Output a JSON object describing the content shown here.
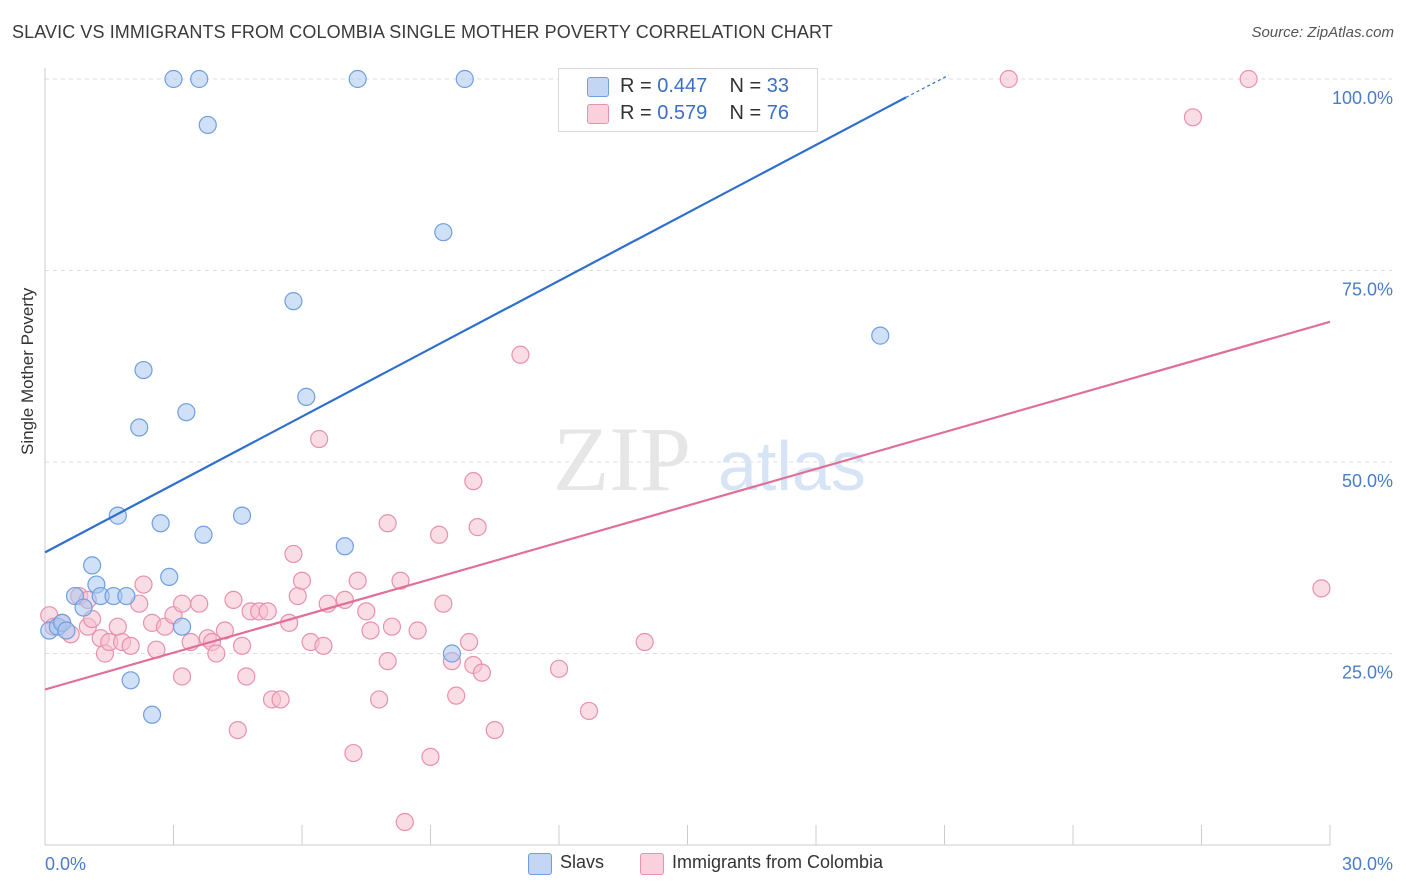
{
  "title": "SLAVIC VS IMMIGRANTS FROM COLOMBIA SINGLE MOTHER POVERTY CORRELATION CHART",
  "source": "Source: ZipAtlas.com",
  "watermark": {
    "zip": "ZIP",
    "atlas": "atlas"
  },
  "legend_top": {
    "r_label": "R =",
    "n_label": "N =",
    "rows": [
      {
        "r": "0.447",
        "n": "33"
      },
      {
        "r": "0.579",
        "n": "76"
      }
    ]
  },
  "legend_bottom": [
    "Slavs",
    "Immigrants from Colombia"
  ],
  "colors": {
    "blue_fill": "#a8c6f0",
    "blue_stroke": "#6f9fe0",
    "blue_line": "#2e6fce",
    "pink_fill": "#f6bfd0",
    "pink_stroke": "#e891ad",
    "pink_line": "#e06f99",
    "tick_text": "#4a7cc9",
    "grid": "#dddddd"
  },
  "chart_data": {
    "type": "scatter",
    "title": "SLAVIC VS IMMIGRANTS FROM COLOMBIA SINGLE MOTHER POVERTY CORRELATION CHART",
    "xlabel": "",
    "ylabel": "Single Mother Poverty",
    "xlim": [
      0,
      30
    ],
    "ylim": [
      0,
      102
    ],
    "x_tick_labels": [
      {
        "value": 0,
        "label": "0.0%"
      },
      {
        "value": 30,
        "label": "30.0%"
      }
    ],
    "y_tick_labels": [
      {
        "value": 25,
        "label": "25.0%"
      },
      {
        "value": 50,
        "label": "50.0%"
      },
      {
        "value": 75,
        "label": "75.0%"
      },
      {
        "value": 100,
        "label": "100.0%"
      }
    ],
    "series": [
      {
        "name": "Slavs",
        "r": 0.447,
        "n": 33,
        "trend": {
          "x": [
            0,
            20.1
          ],
          "y": [
            38.2,
            97.6
          ],
          "dashed_to": {
            "x": 21.1,
            "y": 100.5
          }
        },
        "points": [
          [
            0.1,
            28.0
          ],
          [
            0.3,
            28.5
          ],
          [
            0.4,
            29.0
          ],
          [
            0.5,
            28.0
          ],
          [
            0.7,
            32.5
          ],
          [
            0.9,
            31.0
          ],
          [
            1.1,
            36.5
          ],
          [
            1.2,
            34.0
          ],
          [
            1.3,
            32.5
          ],
          [
            1.6,
            32.5
          ],
          [
            1.9,
            32.5
          ],
          [
            2.0,
            21.5
          ],
          [
            2.2,
            54.5
          ],
          [
            2.3,
            62.0
          ],
          [
            2.5,
            17.0
          ],
          [
            2.7,
            42.0
          ],
          [
            2.9,
            35.0
          ],
          [
            3.2,
            28.5
          ],
          [
            3.3,
            56.5
          ],
          [
            3.7,
            40.5
          ],
          [
            1.7,
            43.0
          ],
          [
            4.6,
            43.0
          ],
          [
            5.8,
            71.0
          ],
          [
            6.1,
            58.5
          ],
          [
            7.0,
            39.0
          ],
          [
            3.0,
            100.0
          ],
          [
            3.6,
            100.0
          ],
          [
            7.3,
            100.0
          ],
          [
            9.8,
            100.0
          ],
          [
            3.8,
            94.0
          ],
          [
            9.3,
            80.0
          ],
          [
            9.5,
            25.0
          ],
          [
            19.5,
            66.5
          ]
        ]
      },
      {
        "name": "Immigrants from Colombia",
        "r": 0.579,
        "n": 76,
        "trend": {
          "x": [
            0,
            30
          ],
          "y": [
            20.3,
            68.3
          ]
        },
        "points": [
          [
            0.1,
            30.0
          ],
          [
            0.2,
            28.5
          ],
          [
            0.4,
            29.0
          ],
          [
            0.6,
            27.5
          ],
          [
            0.8,
            32.5
          ],
          [
            1.0,
            28.5
          ],
          [
            1.1,
            29.5
          ],
          [
            1.3,
            27.0
          ],
          [
            1.4,
            25.0
          ],
          [
            1.5,
            26.5
          ],
          [
            1.7,
            28.5
          ],
          [
            1.8,
            26.5
          ],
          [
            2.0,
            26.0
          ],
          [
            2.2,
            31.5
          ],
          [
            2.3,
            34.0
          ],
          [
            2.5,
            29.0
          ],
          [
            2.6,
            25.5
          ],
          [
            2.8,
            28.5
          ],
          [
            3.0,
            30.0
          ],
          [
            3.2,
            31.5
          ],
          [
            3.2,
            22.0
          ],
          [
            3.4,
            26.5
          ],
          [
            3.6,
            31.5
          ],
          [
            3.8,
            27.0
          ],
          [
            3.9,
            26.5
          ],
          [
            4.0,
            25.0
          ],
          [
            4.2,
            28.0
          ],
          [
            4.4,
            32.0
          ],
          [
            4.5,
            15.0
          ],
          [
            4.6,
            26.0
          ],
          [
            4.7,
            22.0
          ],
          [
            4.8,
            30.5
          ],
          [
            5.0,
            30.5
          ],
          [
            5.2,
            30.5
          ],
          [
            5.3,
            19.0
          ],
          [
            5.5,
            19.0
          ],
          [
            5.7,
            29.0
          ],
          [
            5.8,
            38.0
          ],
          [
            5.9,
            32.5
          ],
          [
            6.0,
            34.5
          ],
          [
            6.2,
            26.5
          ],
          [
            6.5,
            26.0
          ],
          [
            6.4,
            53.0
          ],
          [
            6.6,
            31.5
          ],
          [
            7.0,
            32.0
          ],
          [
            7.2,
            12.0
          ],
          [
            7.3,
            34.5
          ],
          [
            7.5,
            30.5
          ],
          [
            7.6,
            28.0
          ],
          [
            7.8,
            19.0
          ],
          [
            8.0,
            24.0
          ],
          [
            8.1,
            28.5
          ],
          [
            8.3,
            34.5
          ],
          [
            8.0,
            42.0
          ],
          [
            8.4,
            3.0
          ],
          [
            8.7,
            28.0
          ],
          [
            9.0,
            11.5
          ],
          [
            9.2,
            40.5
          ],
          [
            9.3,
            31.5
          ],
          [
            9.5,
            24.0
          ],
          [
            9.6,
            19.5
          ],
          [
            9.9,
            26.5
          ],
          [
            10.0,
            23.5
          ],
          [
            10.2,
            22.5
          ],
          [
            10.0,
            47.5
          ],
          [
            10.1,
            41.5
          ],
          [
            10.5,
            15.0
          ],
          [
            11.1,
            64.0
          ],
          [
            12.0,
            23.0
          ],
          [
            12.7,
            17.5
          ],
          [
            14.0,
            26.5
          ],
          [
            22.5,
            100.0
          ],
          [
            28.1,
            100.0
          ],
          [
            26.8,
            95.0
          ],
          [
            29.8,
            33.5
          ],
          [
            1.0,
            32.0
          ]
        ]
      }
    ]
  }
}
